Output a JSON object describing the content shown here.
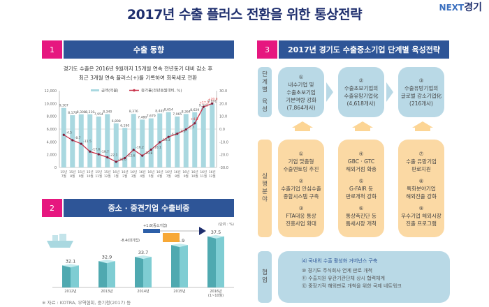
{
  "page": {
    "title": "2017년 수출 플러스 전환을 위한 통상전략",
    "logo_prefix": "NEXT",
    "logo_suffix": "경기"
  },
  "section1": {
    "num": "1",
    "title": "수출 동향",
    "subtitle_line1": "경기도 수출은 2016년 9월까지 15개월 연속 전년동기 대비 감소 후",
    "subtitle_line2": "최근 3개월 연속 플러스(+)를 기록하여 회복세로 전환"
  },
  "section2": {
    "num": "2",
    "title": "중소 · 중견기업 수출비중",
    "unit": "(단위 : %)",
    "annot_sme": "+1.8(중소기업)",
    "annot_large": "-8.4(대기업)",
    "source": "※ 자료 : KOTRA, 무역협회, 중기청(2017) 등"
  },
  "section3": {
    "num": "3",
    "title": "2017년 경기도 수출중소기업 단계별 육성전략",
    "row_labels": {
      "stage": [
        "단",
        "계",
        "별",
        "",
        "육",
        "성"
      ],
      "action": [
        "실",
        "행",
        "분",
        "야"
      ],
      "collab": [
        "협",
        "업"
      ]
    },
    "stages": [
      {
        "num": "①",
        "lines": [
          "내수기업 및",
          "수출초보기업",
          "기본역량 강화",
          "(7,864개사)"
        ]
      },
      {
        "num": "②",
        "lines": [
          "수출초보기업의",
          "수출유망기업化",
          "(4,618개사)"
        ]
      },
      {
        "num": "③",
        "lines": [
          "수출유망기업의",
          "글로벌 강소기업化",
          "(216개사)"
        ]
      }
    ],
    "actions": [
      [
        {
          "num": "①",
          "lines": [
            "기업 맞춤형",
            "수출멘토링 추진"
          ]
        },
        {
          "num": "②",
          "lines": [
            "수출기업 안심수출",
            "종합시스템 구축"
          ]
        },
        {
          "num": "③",
          "lines": [
            "FTA대응 통상",
            "진흥사업 확대"
          ]
        }
      ],
      [
        {
          "num": "④",
          "lines": [
            "GBC · GTC",
            "해외거점 확충"
          ]
        },
        {
          "num": "⑤",
          "lines": [
            "G-FAIR 등",
            "판로개척 강화"
          ]
        },
        {
          "num": "⑥",
          "lines": [
            "통상촉진단 등",
            "틈새시장 개척"
          ]
        }
      ],
      [
        {
          "num": "⑦",
          "lines": [
            "수출 유망기업",
            "판로지원"
          ]
        },
        {
          "num": "⑧",
          "lines": [
            "특화분야기업",
            "해외진출 강화"
          ]
        },
        {
          "num": "⑨",
          "lines": [
            "우수기업 해외시장",
            "진출 프로그램"
          ]
        }
      ]
    ],
    "collab": {
      "head": "⑷ 국내외 수출 활성화 거버넌스 구축",
      "items": [
        "⑩ 경기도 주식회사 연계 판로 개척",
        "⑪ 수출지원 유관기관단체 상시 협력체계",
        "⑫ 중장기적 해외판로 개척을 위한 국제 네트워크"
      ]
    }
  },
  "chart_data": [
    {
      "type": "bar+line",
      "title": "",
      "categories": [
        [
          "15년",
          "7월"
        ],
        [
          "15년",
          "8월"
        ],
        [
          "15년",
          "9월"
        ],
        [
          "15년",
          "10월"
        ],
        [
          "15년",
          "11월"
        ],
        [
          "15년",
          "12월"
        ],
        [
          "16년",
          "1월"
        ],
        [
          "16년",
          "2월"
        ],
        [
          "16년",
          "3월"
        ],
        [
          "16년",
          "4월"
        ],
        [
          "16년",
          "5월"
        ],
        [
          "16년",
          "6월"
        ],
        [
          "16년",
          "7월"
        ],
        [
          "16년",
          "8월"
        ],
        [
          "16년",
          "9월"
        ],
        [
          "16년",
          "10월"
        ],
        [
          "16년",
          "11월"
        ],
        [
          "16년",
          "12월"
        ]
      ],
      "series": [
        {
          "name": "금액(억불)",
          "type": "bar",
          "axis": "left",
          "color": "#a9d8e0",
          "values": [
            9307,
            8170,
            8308,
            8310,
            7954,
            8340,
            6898,
            6190,
            8376,
            7480,
            7679,
            8445,
            8654,
            7965,
            8364,
            8629,
            9342,
            9991
          ],
          "labels": [
            "9,307",
            "8,170",
            "8,308",
            "8,310",
            "7,954",
            "8,340",
            "6,898",
            "6,190",
            "8,376",
            "7,480",
            "7,679",
            "8,445",
            "8,654",
            "7,965",
            "8,364",
            "8,629",
            "9,342",
            "9,991"
          ]
        },
        {
          "name": "증가율(전년동월대비, %)",
          "type": "line",
          "axis": "right",
          "color": "#c8324a",
          "values": [
            -4.5,
            -8.7,
            -11.5,
            -17.6,
            -19.7,
            -22.1,
            -25.6,
            -22.6,
            -16.2,
            -20.8,
            -16.1,
            -10.3,
            -6.1,
            -3.6,
            -0.3,
            4.5,
            17.3,
            20.0
          ],
          "labels": [
            "-4.5",
            "-8.7",
            "-11.5",
            "-17.6",
            "-19.7",
            "-22.1",
            "-25.6",
            "-22.6",
            "-16.2",
            "-20.8",
            "-16.1",
            "-10.3",
            "-6.1",
            "-3.6",
            "-0.3",
            "+4.5",
            "+17.3",
            "+20.0"
          ]
        }
      ],
      "left_axis": {
        "ylim": [
          0,
          12000
        ],
        "ticks": [
          "0",
          "2,000",
          "4,000",
          "6,000",
          "8,000",
          "10,000",
          "12,000"
        ]
      },
      "right_axis": {
        "ylim": [
          -30,
          30
        ],
        "ticks": [
          "-30.0",
          "-20.0",
          "-10.0",
          "0.0",
          "10.0",
          "20.0",
          "30.0"
        ]
      },
      "legend": "top-center",
      "grid": false
    },
    {
      "type": "bar",
      "title": "중소 · 중견기업 수출비중",
      "categories": [
        "2012년",
        "2013년",
        "2014년",
        "2015년",
        "2016년 (1~10월)"
      ],
      "values": [
        32.1,
        32.9,
        33.7,
        35.9,
        37.5
      ],
      "labels": [
        "32.1",
        "32.9",
        "33.7",
        "35.9",
        "37.5"
      ],
      "ylabel": "(단위 : %)",
      "ylim": [
        28,
        38
      ]
    }
  ]
}
